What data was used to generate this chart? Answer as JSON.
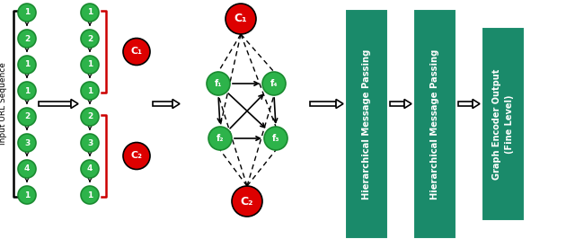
{
  "green_color": "#2db34a",
  "green_edge": "#1a8a30",
  "red_color": "#dd0000",
  "teal_color": "#1a8a6a",
  "white": "#ffffff",
  "black": "#000000",
  "red_bracket": "#cc0000",
  "seq_labels": [
    "1",
    "2",
    "1",
    "1",
    "2",
    "3",
    "4",
    "1"
  ],
  "ylabel": "Input URL Sequence",
  "box1_text": "Hierarchical Message Passing",
  "box2_text": "Hierarchical Message Passing",
  "box3_text": "Graph Encoder Output\n(Fine Level)"
}
